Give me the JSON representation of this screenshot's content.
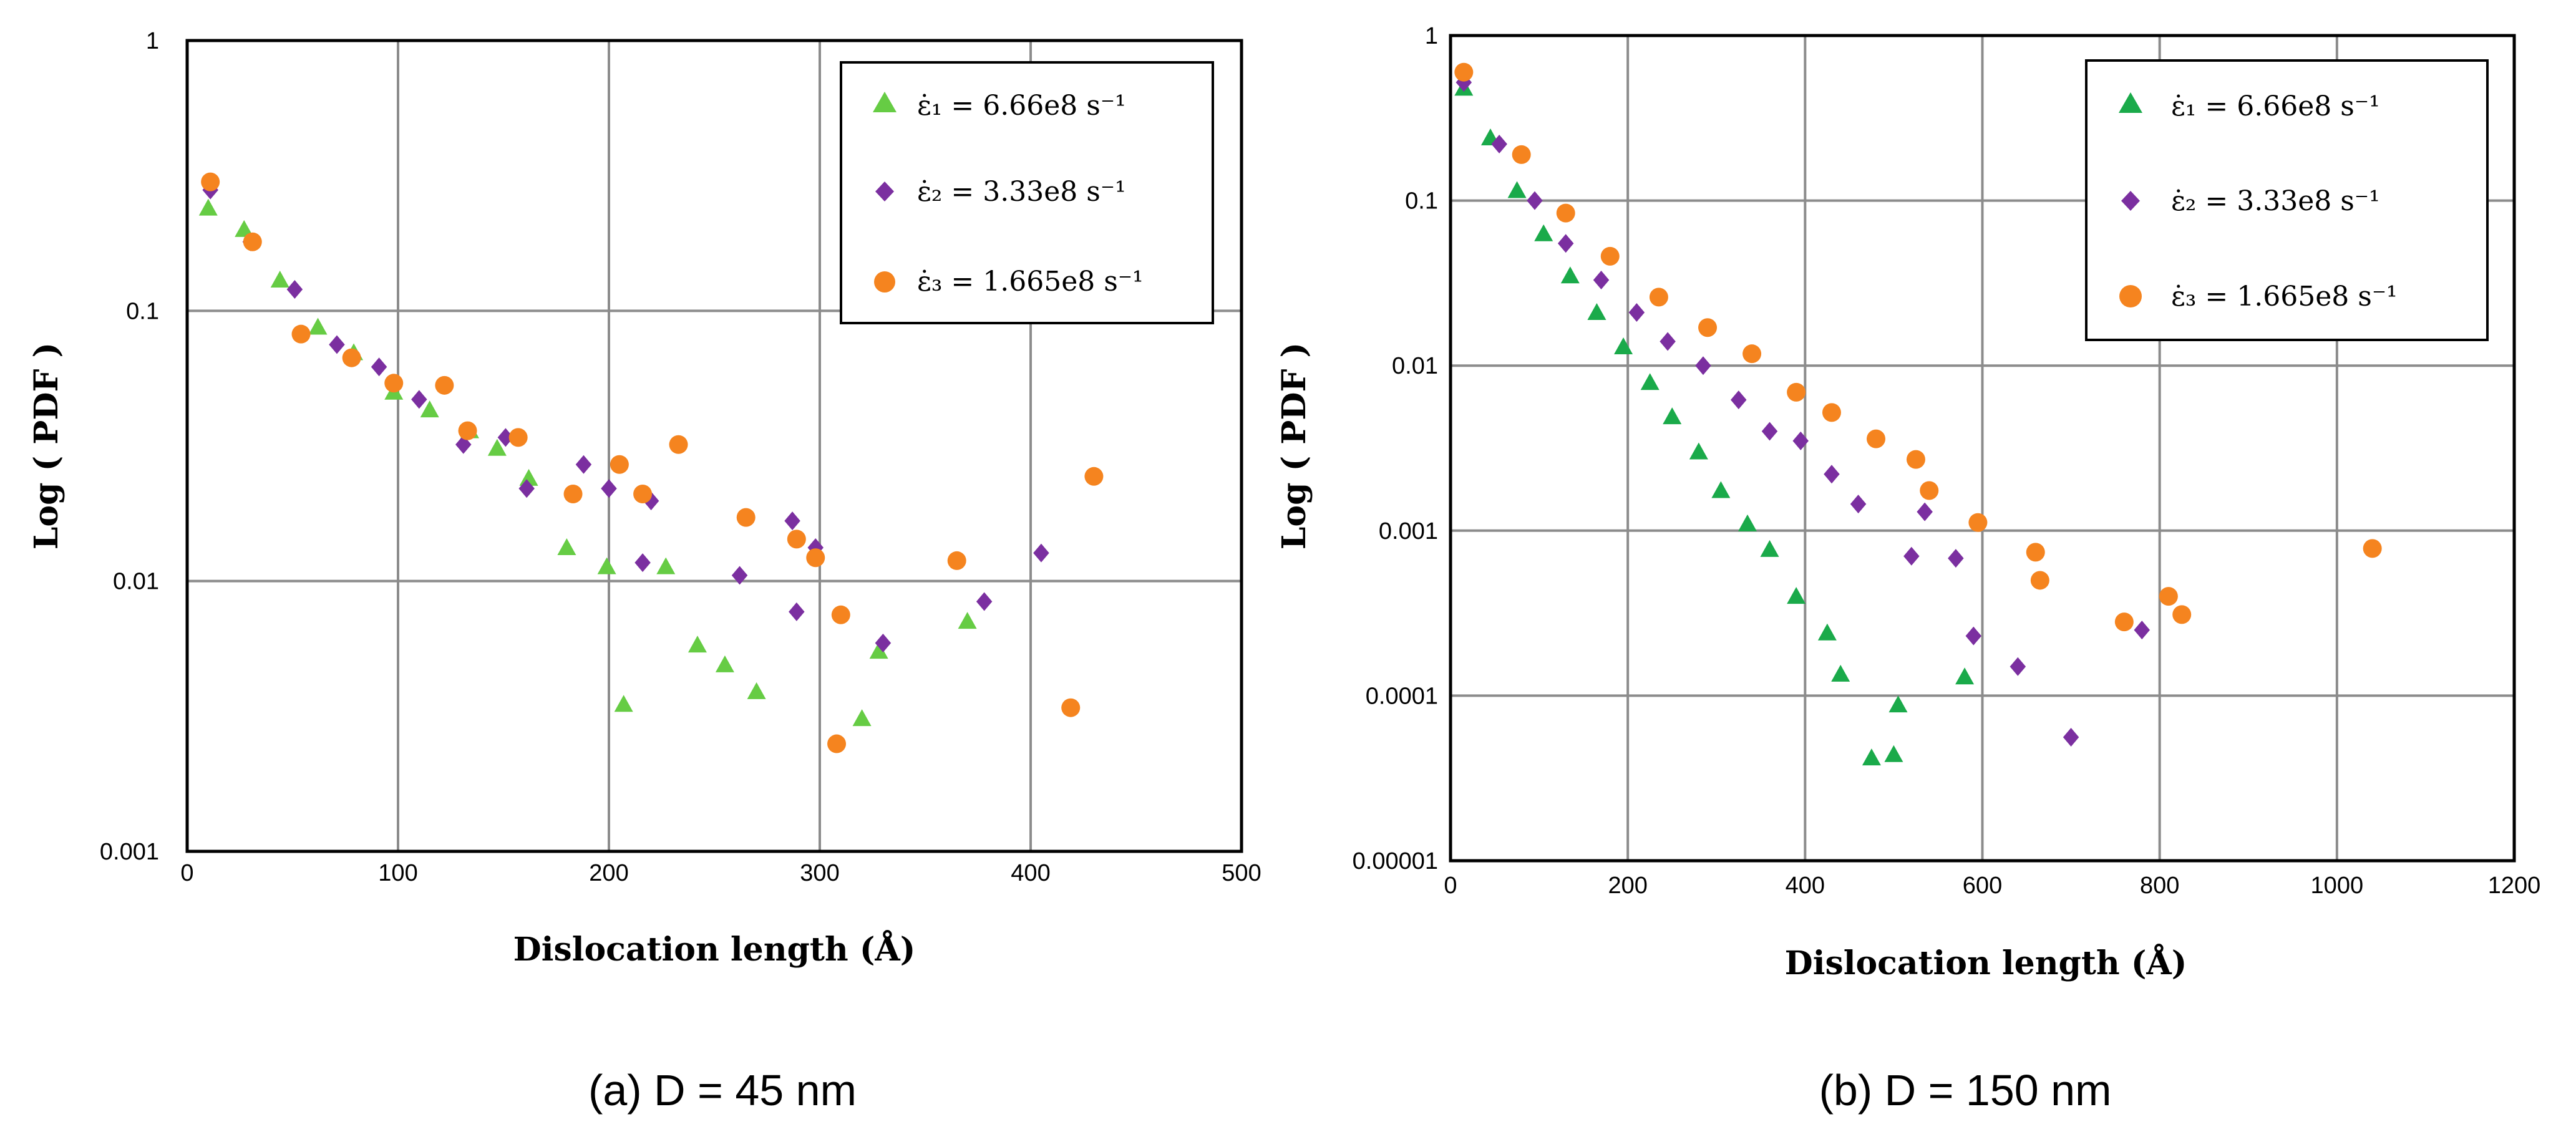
{
  "colors": {
    "series1": "#66cc44",
    "series2": "#7b2fa0",
    "series3": "#f5841f",
    "grid": "#8c8c8c"
  },
  "chart_data": [
    {
      "type": "scatter",
      "caption": "(a) D = 45 nm",
      "xlabel": "Dislocation length (Å)",
      "ylabel": "Log ( PDF )",
      "xlim": [
        0,
        500
      ],
      "ylim": [
        0.001,
        1
      ],
      "yscale": "log",
      "xticks": [
        "0",
        "100",
        "200",
        "300",
        "400",
        "500"
      ],
      "yticks": [
        "0.001",
        "0.01",
        "0.1",
        "1"
      ],
      "legend_position": "top-right",
      "series": [
        {
          "name": "ε̇₁ = 6.66e8 s⁻¹",
          "marker": "triangle",
          "color": "#66cc44",
          "x": [
            10,
            27,
            44,
            62,
            79,
            98,
            115,
            134,
            147,
            162,
            180,
            199,
            207,
            227,
            242,
            255,
            270,
            320,
            328,
            370
          ],
          "y": [
            0.24,
            0.2,
            0.13,
            0.087,
            0.07,
            0.05,
            0.043,
            0.036,
            0.031,
            0.024,
            0.0133,
            0.0113,
            0.0035,
            0.0113,
            0.0058,
            0.0049,
            0.0039,
            0.0031,
            0.0055,
            0.0071
          ]
        },
        {
          "name": "ε̇₂ = 3.33e8 s⁻¹",
          "marker": "diamond",
          "color": "#7b2fa0",
          "x": [
            11,
            30,
            51,
            71,
            91,
            110,
            131,
            151,
            161,
            188,
            200,
            216,
            220,
            262,
            287,
            289,
            298,
            330,
            378,
            405
          ],
          "y": [
            0.28,
            0.18,
            0.12,
            0.075,
            0.062,
            0.047,
            0.032,
            0.034,
            0.022,
            0.027,
            0.022,
            0.0117,
            0.0198,
            0.0105,
            0.0167,
            0.0077,
            0.0133,
            0.0059,
            0.0084,
            0.0127
          ]
        },
        {
          "name": "ε̇₃ = 1.665e8 s⁻¹",
          "marker": "circle",
          "color": "#f5841f",
          "x": [
            11,
            31,
            54,
            78,
            98,
            122,
            133,
            157,
            183,
            205,
            216,
            233,
            265,
            289,
            298,
            308,
            310,
            365,
            419,
            430
          ],
          "y": [
            0.3,
            0.18,
            0.082,
            0.067,
            0.054,
            0.053,
            0.036,
            0.034,
            0.021,
            0.027,
            0.021,
            0.032,
            0.0172,
            0.0143,
            0.0122,
            0.0025,
            0.0075,
            0.0119,
            0.0034,
            0.0244
          ]
        }
      ]
    },
    {
      "type": "scatter",
      "caption": "(b) D = 150 nm",
      "xlabel": "Dislocation length (Å)",
      "ylabel": "Log ( PDF )",
      "xlim": [
        0,
        1200
      ],
      "ylim": [
        1e-05,
        1
      ],
      "yscale": "log",
      "xticks": [
        "0",
        "200",
        "400",
        "600",
        "800",
        "1000",
        "1200"
      ],
      "yticks": [
        "0.00001",
        "0.0001",
        "0.001",
        "0.01",
        "0.1",
        "1"
      ],
      "legend_position": "top-right",
      "series": [
        {
          "name": "ε̇₁ = 6.66e8 s⁻¹",
          "marker": "triangle",
          "color": "#1aaa4a",
          "x": [
            15,
            45,
            75,
            105,
            135,
            165,
            195,
            225,
            250,
            280,
            305,
            335,
            360,
            390,
            425,
            440,
            475,
            500,
            505,
            580
          ],
          "y": [
            0.48,
            0.24,
            0.115,
            0.063,
            0.035,
            0.021,
            0.013,
            0.0079,
            0.0049,
            0.003,
            0.00175,
            0.0011,
            0.00077,
            0.0004,
            0.00024,
            0.000135,
            4.2e-05,
            4.4e-05,
            8.8e-05,
            0.00013
          ]
        },
        {
          "name": "ε̇₂ = 3.33e8 s⁻¹",
          "marker": "diamond",
          "color": "#7b2fa0",
          "x": [
            15,
            55,
            95,
            130,
            170,
            210,
            245,
            285,
            325,
            360,
            395,
            430,
            460,
            520,
            535,
            570,
            590,
            640,
            700,
            780
          ],
          "y": [
            0.52,
            0.22,
            0.1,
            0.055,
            0.033,
            0.021,
            0.014,
            0.01,
            0.0062,
            0.004,
            0.0035,
            0.0022,
            0.00145,
            0.0007,
            0.0013,
            0.00068,
            0.00023,
            0.00015,
            5.6e-05,
            0.00025
          ]
        },
        {
          "name": "ε̇₃ = 1.665e8 s⁻¹",
          "marker": "circle",
          "color": "#f5841f",
          "x": [
            15,
            80,
            130,
            180,
            235,
            290,
            340,
            390,
            430,
            480,
            525,
            540,
            595,
            660,
            665,
            760,
            810,
            825,
            1040
          ],
          "y": [
            0.6,
            0.19,
            0.084,
            0.046,
            0.026,
            0.017,
            0.0118,
            0.0069,
            0.0052,
            0.0036,
            0.0027,
            0.00175,
            0.00112,
            0.00074,
            0.0005,
            0.00028,
            0.0004,
            0.00031,
            0.00078
          ]
        }
      ]
    }
  ]
}
